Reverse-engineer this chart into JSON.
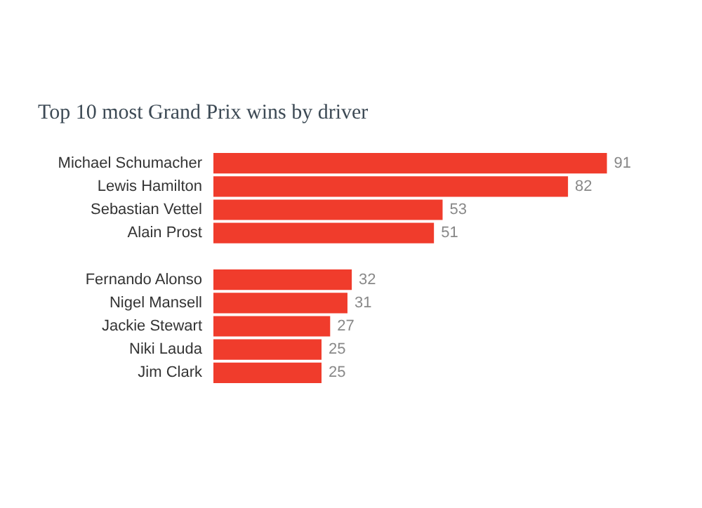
{
  "chart_data": {
    "type": "bar",
    "title": "Top 10 most Grand Prix wins by driver",
    "orientation": "horizontal",
    "categories": [
      "Michael Schumacher",
      "Lewis Hamilton",
      "Sebastian Vettel",
      "Alain Prost",
      null,
      "Fernando Alonso",
      "Nigel Mansell",
      "Jackie Stewart",
      "Niki Lauda",
      "Jim Clark"
    ],
    "values": [
      91,
      82,
      53,
      51,
      null,
      32,
      31,
      27,
      25,
      25
    ],
    "color": "#f03c2c",
    "data_labels": true
  }
}
